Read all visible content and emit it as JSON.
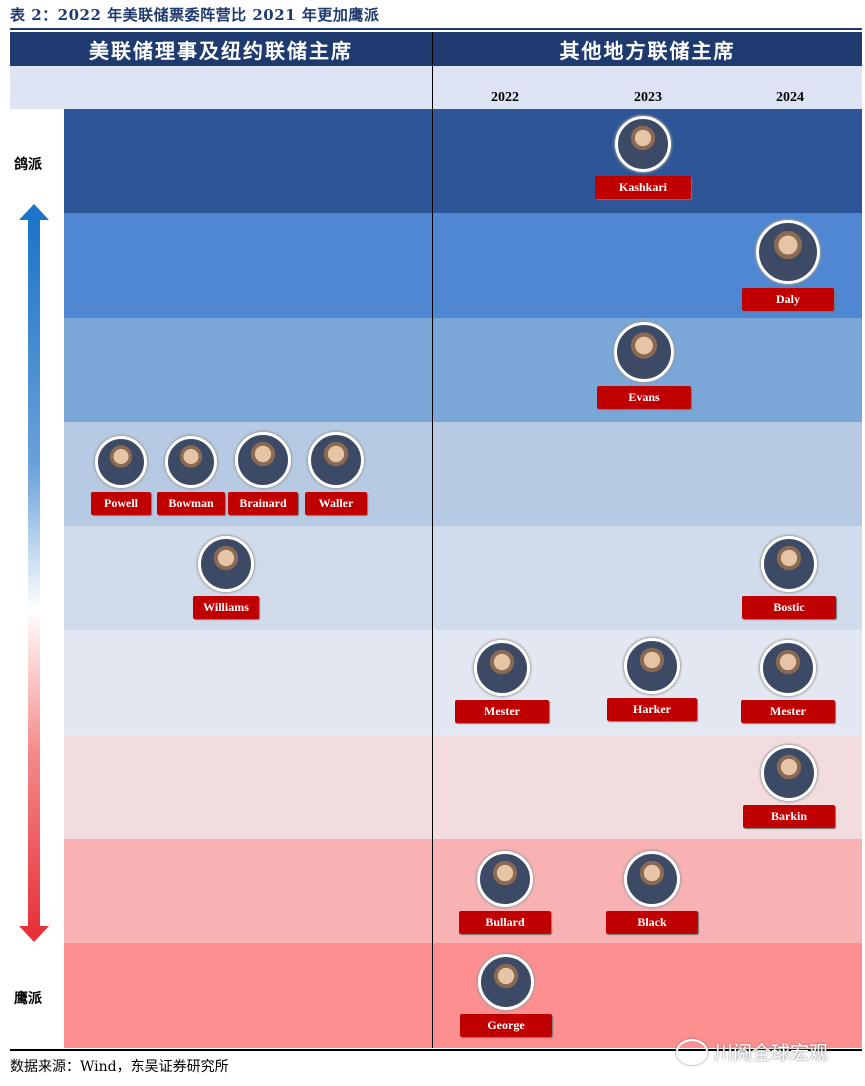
{
  "caption": "表 2：2022 年美联储票委阵营比 2021 年更加鹰派",
  "columns": {
    "left": "美联储理事及纽约联储主席",
    "right": "其他地方联储主席"
  },
  "years": [
    "2022",
    "2023",
    "2024"
  ],
  "side_labels": {
    "dove": "鸽派",
    "hawk": "鹰派"
  },
  "band_colors": [
    "#2e5597",
    "#4f87d2",
    "#7aa6d8",
    "#b6cae3",
    "#d0dcec",
    "#e3e7f2",
    "#f2dcde",
    "#f8b2b4",
    "#fd8f91"
  ],
  "people": [
    {
      "name": "Kashkari",
      "band": 0
    },
    {
      "name": "Daly",
      "band": 1
    },
    {
      "name": "Evans",
      "band": 2
    },
    {
      "name": "Powell",
      "band": 3
    },
    {
      "name": "Bowman",
      "band": 3
    },
    {
      "name": "Brainard",
      "band": 3
    },
    {
      "name": "Waller",
      "band": 3
    },
    {
      "name": "Williams",
      "band": 4
    },
    {
      "name": "Bostic",
      "band": 4
    },
    {
      "name": "Mester",
      "band": 5
    },
    {
      "name": "Harker",
      "band": 5
    },
    {
      "name": "Mester",
      "band": 5
    },
    {
      "name": "Barkin",
      "band": 6
    },
    {
      "name": "Bullard",
      "band": 7
    },
    {
      "name": "Black",
      "band": 7
    },
    {
      "name": "George",
      "band": 8
    }
  ],
  "source": "数据来源：Wind，东吴证券研究所",
  "watermark": "川阅全球宏观"
}
